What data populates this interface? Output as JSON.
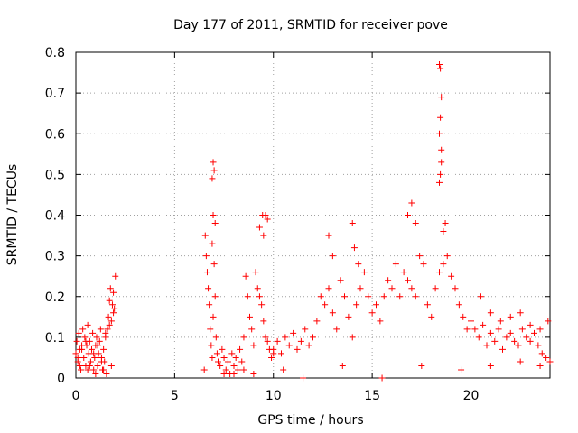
{
  "chart_data": {
    "type": "scatter",
    "title": "Day 177 of 2011, SRMTID for receiver pove",
    "xlabel": "GPS time / hours",
    "ylabel": "SRMTID / TECUs",
    "xlim": [
      0,
      24
    ],
    "ylim": [
      0,
      0.8
    ],
    "xticks": [
      0,
      5,
      10,
      15,
      20
    ],
    "xtick_labels": [
      "0",
      "5",
      "10",
      "15",
      "20"
    ],
    "yticks": [
      0,
      0.1,
      0.2,
      0.3,
      0.4,
      0.5,
      0.6,
      0.7,
      0.8
    ],
    "ytick_labels": [
      "0",
      "0.1",
      "0.2",
      "0.3",
      "0.4",
      "0.5",
      "0.6",
      "0.7",
      "0.8"
    ],
    "grid": true,
    "marker": "+",
    "series": [
      {
        "name": "SRMTID",
        "color": "#ff0000",
        "x": [
          0.0,
          0.05,
          0.1,
          0.15,
          0.2,
          0.25,
          0.3,
          0.35,
          0.4,
          0.45,
          0.5,
          0.55,
          0.6,
          0.65,
          0.7,
          0.75,
          0.8,
          0.85,
          0.9,
          0.95,
          1.0,
          1.05,
          1.1,
          1.15,
          1.2,
          1.25,
          1.3,
          1.35,
          1.4,
          1.45,
          1.5,
          1.55,
          1.6,
          1.65,
          1.7,
          1.75,
          1.8,
          1.85,
          1.9,
          1.95,
          2.0,
          0.1,
          0.3,
          0.5,
          0.7,
          0.9,
          1.1,
          1.3,
          1.5,
          1.7,
          1.9,
          6.5,
          6.55,
          6.6,
          6.65,
          6.7,
          6.75,
          6.8,
          6.85,
          6.9,
          6.95,
          7.0,
          7.05,
          7.1,
          7.15,
          7.2,
          7.3,
          7.4,
          7.5,
          7.6,
          7.7,
          7.8,
          7.9,
          8.0,
          8.1,
          8.2,
          8.3,
          8.4,
          8.5,
          8.6,
          8.7,
          8.8,
          8.9,
          9.0,
          9.1,
          9.2,
          9.3,
          9.4,
          9.5,
          9.6,
          9.7,
          9.8,
          9.9,
          10.0,
          6.9,
          6.95,
          7.0,
          6.95,
          6.9,
          7.05,
          9.3,
          9.6,
          9.7,
          9.45,
          9.5,
          10.0,
          10.2,
          10.4,
          10.6,
          10.8,
          11.0,
          11.2,
          11.4,
          11.6,
          11.8,
          12.0,
          12.2,
          12.4,
          12.6,
          12.8,
          13.0,
          13.2,
          13.4,
          13.6,
          13.8,
          14.0,
          14.2,
          14.4,
          14.6,
          14.8,
          15.0,
          15.2,
          15.4,
          15.6,
          15.8,
          16.0,
          12.8,
          13.0,
          14.0,
          14.1,
          14.3,
          16.2,
          16.4,
          16.6,
          16.8,
          17.0,
          17.2,
          17.4,
          17.6,
          17.8,
          18.0,
          18.2,
          18.4,
          18.6,
          18.8,
          19.0,
          19.2,
          19.4,
          19.6,
          19.8,
          20.0,
          16.8,
          17.0,
          17.2,
          18.7,
          18.6,
          18.4,
          18.45,
          18.5,
          18.45,
          18.4,
          18.5,
          18.45,
          18.4,
          18.5,
          20.2,
          20.4,
          20.6,
          20.8,
          21.0,
          21.2,
          21.4,
          21.6,
          21.8,
          22.0,
          22.2,
          22.4,
          22.6,
          22.8,
          23.0,
          23.2,
          23.4,
          23.6,
          23.8,
          24.0,
          20.5,
          21.0,
          21.5,
          22.0,
          22.5,
          23.0,
          23.5,
          23.9,
          0.2,
          0.6,
          1.0,
          1.4,
          1.8,
          7.5,
          8.0,
          8.5,
          9.0,
          10.5,
          11.5,
          13.5,
          15.5,
          17.5,
          19.5,
          21.0,
          22.5,
          23.5
        ],
        "y": [
          0.06,
          0.09,
          0.04,
          0.11,
          0.07,
          0.02,
          0.08,
          0.12,
          0.05,
          0.1,
          0.03,
          0.08,
          0.13,
          0.06,
          0.09,
          0.04,
          0.07,
          0.11,
          0.02,
          0.05,
          0.08,
          0.1,
          0.03,
          0.06,
          0.09,
          0.12,
          0.05,
          0.02,
          0.07,
          0.04,
          0.1,
          0.01,
          0.12,
          0.15,
          0.19,
          0.22,
          0.14,
          0.18,
          0.21,
          0.17,
          0.25,
          0.05,
          0.07,
          0.09,
          0.03,
          0.06,
          0.08,
          0.04,
          0.11,
          0.13,
          0.16,
          0.02,
          0.35,
          0.3,
          0.26,
          0.22,
          0.18,
          0.12,
          0.08,
          0.05,
          0.15,
          0.28,
          0.2,
          0.1,
          0.06,
          0.04,
          0.03,
          0.07,
          0.05,
          0.02,
          0.04,
          0.01,
          0.06,
          0.03,
          0.05,
          0.02,
          0.07,
          0.04,
          0.1,
          0.25,
          0.2,
          0.15,
          0.12,
          0.08,
          0.26,
          0.22,
          0.2,
          0.18,
          0.14,
          0.1,
          0.09,
          0.07,
          0.05,
          0.06,
          0.49,
          0.53,
          0.51,
          0.4,
          0.33,
          0.38,
          0.37,
          0.4,
          0.39,
          0.4,
          0.35,
          0.07,
          0.09,
          0.06,
          0.1,
          0.08,
          0.11,
          0.07,
          0.09,
          0.12,
          0.08,
          0.1,
          0.14,
          0.2,
          0.18,
          0.22,
          0.16,
          0.12,
          0.24,
          0.2,
          0.15,
          0.1,
          0.18,
          0.22,
          0.26,
          0.2,
          0.16,
          0.18,
          0.14,
          0.2,
          0.24,
          0.22,
          0.35,
          0.3,
          0.38,
          0.32,
          0.28,
          0.28,
          0.2,
          0.26,
          0.24,
          0.22,
          0.2,
          0.3,
          0.28,
          0.18,
          0.15,
          0.22,
          0.26,
          0.28,
          0.3,
          0.25,
          0.22,
          0.18,
          0.15,
          0.12,
          0.14,
          0.4,
          0.43,
          0.38,
          0.38,
          0.36,
          0.77,
          0.76,
          0.69,
          0.64,
          0.6,
          0.56,
          0.5,
          0.48,
          0.53,
          0.12,
          0.1,
          0.13,
          0.08,
          0.11,
          0.09,
          0.12,
          0.07,
          0.1,
          0.11,
          0.09,
          0.08,
          0.12,
          0.1,
          0.09,
          0.11,
          0.08,
          0.06,
          0.05,
          0.04,
          0.2,
          0.16,
          0.14,
          0.15,
          0.16,
          0.13,
          0.12,
          0.14,
          0.03,
          0.02,
          0.01,
          0.02,
          0.03,
          0.01,
          0.01,
          0.02,
          0.01,
          0.02,
          0.0,
          0.03,
          0.0,
          0.03,
          0.02,
          0.03,
          0.04,
          0.03
        ]
      }
    ]
  }
}
